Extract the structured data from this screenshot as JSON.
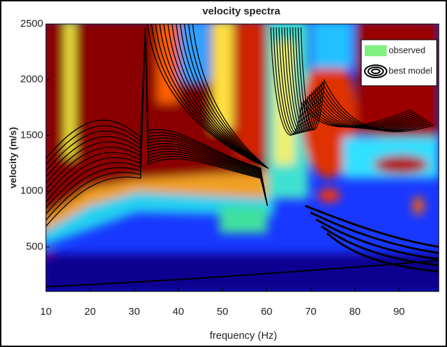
{
  "chart_data": {
    "type": "heatmap",
    "title": "velocity spectra",
    "x_label": "frequency (Hz)",
    "y_label": "velocity (m/s)",
    "xlim": [
      10,
      99
    ],
    "ylim": [
      100,
      2500
    ],
    "xticks": [
      10,
      20,
      30,
      40,
      50,
      60,
      70,
      80,
      90
    ],
    "yticks": [
      500,
      1000,
      1500,
      2000,
      2500
    ],
    "series": [
      {
        "name": "observed",
        "color": "#80f080"
      },
      {
        "name": "best model",
        "color": "#000000"
      }
    ],
    "legend": "upper right"
  }
}
